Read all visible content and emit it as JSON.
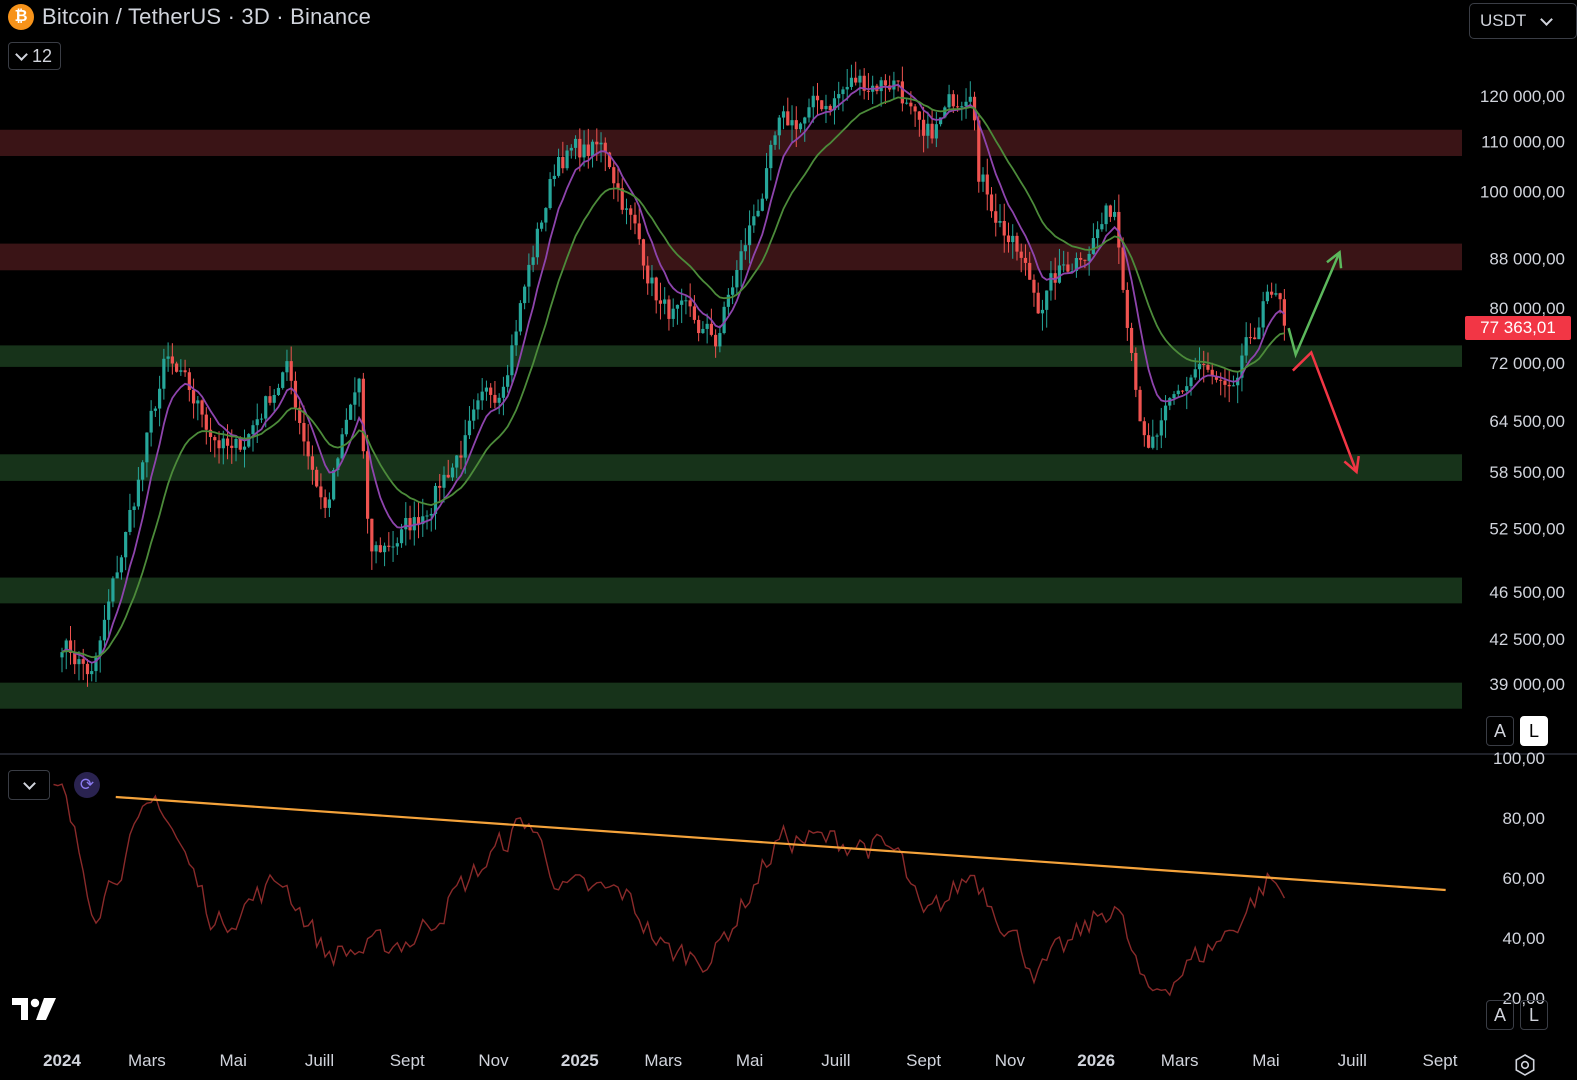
{
  "header": {
    "logo_letter": "₿",
    "title": "Bitcoin / TetherUS · 3D · Binance",
    "indicator_count": "12",
    "currency": "USDT",
    "current_price": "77 363,01"
  },
  "buttons": {
    "auto_label": "A",
    "log_label": "L",
    "auto_label_2": "A",
    "log_label_2": "L"
  },
  "icons": [
    "bitcoin-icon",
    "chevron-down-icon",
    "refresh-icon",
    "tradingview-logo-icon",
    "gear-icon"
  ],
  "colors": {
    "background": "#000000",
    "candle_up": "#26a69a",
    "candle_down": "#ef5350",
    "ema_fast": "#8e44ad",
    "ema_slow": "#4c8b3a",
    "resistance_zone": "#3a1416",
    "support_zone": "#17331a",
    "rsi_line": "#8a2a2a",
    "trendline": "#f5a33b",
    "arrow_up": "#5cb85c",
    "arrow_down": "#f23645"
  },
  "chart_data": [
    {
      "type": "candlestick",
      "scale": "log",
      "price_axis_labels": [
        "120 000,00",
        "110 000,00",
        "100 000,00",
        "88 000,00",
        "80 000,00",
        "72 000,00",
        "64 500,00",
        "58 500,00",
        "52 500,00",
        "46 500,00",
        "42 500,00",
        "39 000,00"
      ],
      "price_axis_values": [
        120000,
        110000,
        100000,
        88000,
        80000,
        72000,
        64500,
        58500,
        52500,
        46500,
        42500,
        39000
      ],
      "time_axis_labels": [
        {
          "label": "2024",
          "bold": true
        },
        {
          "label": "Mars"
        },
        {
          "label": "Mai"
        },
        {
          "label": "Juill"
        },
        {
          "label": "Sept"
        },
        {
          "label": "Nov"
        },
        {
          "label": "2025",
          "bold": true
        },
        {
          "label": "Mars"
        },
        {
          "label": "Mai"
        },
        {
          "label": "Juill"
        },
        {
          "label": "Sept"
        },
        {
          "label": "Nov"
        },
        {
          "label": "2026",
          "bold": true
        },
        {
          "label": "Mars"
        },
        {
          "label": "Mai"
        },
        {
          "label": "Juill"
        },
        {
          "label": "Sept"
        }
      ],
      "zones": [
        {
          "kind": "resistance",
          "from": 107000,
          "to": 112500
        },
        {
          "kind": "resistance",
          "from": 86000,
          "to": 90500
        },
        {
          "kind": "support",
          "from": 71500,
          "to": 74500
        },
        {
          "kind": "support",
          "from": 57500,
          "to": 60500
        },
        {
          "kind": "support",
          "from": 45500,
          "to": 47800
        },
        {
          "kind": "support",
          "from": 37200,
          "to": 39100
        }
      ],
      "key_points": [
        {
          "date": "2024-01-01",
          "price": 42500
        },
        {
          "date": "2024-01-23",
          "price": 39500
        },
        {
          "date": "2024-03-14",
          "price": 72000
        },
        {
          "date": "2024-05-01",
          "price": 60000
        },
        {
          "date": "2024-06-07",
          "price": 71500
        },
        {
          "date": "2024-07-05",
          "price": 54500
        },
        {
          "date": "2024-07-29",
          "price": 69500
        },
        {
          "date": "2024-08-05",
          "price": 49500
        },
        {
          "date": "2024-09-06",
          "price": 53000
        },
        {
          "date": "2024-11-05",
          "price": 69000
        },
        {
          "date": "2024-12-17",
          "price": 107500
        },
        {
          "date": "2025-01-20",
          "price": 108000
        },
        {
          "date": "2025-02-28",
          "price": 80000
        },
        {
          "date": "2025-04-07",
          "price": 75000
        },
        {
          "date": "2025-05-22",
          "price": 111500
        },
        {
          "date": "2025-07-14",
          "price": 123000
        },
        {
          "date": "2025-08-14",
          "price": 124000
        },
        {
          "date": "2025-09-01",
          "price": 108000
        },
        {
          "date": "2025-10-06",
          "price": 126000
        },
        {
          "date": "2025-10-10",
          "price": 104000
        },
        {
          "date": "2025-11-21",
          "price": 81000
        },
        {
          "date": "2026-01-14",
          "price": 97000
        },
        {
          "date": "2026-02-06",
          "price": 60000
        },
        {
          "date": "2026-03-14",
          "price": 72000
        },
        {
          "date": "2026-04-05",
          "price": 66000
        },
        {
          "date": "2026-05-01",
          "price": 81500
        },
        {
          "date": "2026-05-16",
          "price": 77363
        }
      ],
      "projection": {
        "bullish": [
          {
            "date": "2026-05-20",
            "price": 76000
          },
          {
            "date": "2026-06-22",
            "price": 89000
          }
        ],
        "bearish": [
          {
            "date": "2026-05-20",
            "price": 71000
          },
          {
            "date": "2026-06-02",
            "price": 73500
          },
          {
            "date": "2026-07-04",
            "price": 58500
          }
        ]
      }
    },
    {
      "type": "line",
      "name": "RSI",
      "y_axis_labels": [
        "100,00",
        "80,00",
        "60,00",
        "40,00",
        "20,00"
      ],
      "y_axis_values": [
        100,
        80,
        60,
        40,
        20
      ],
      "ylim": [
        20,
        100
      ],
      "trendline": [
        {
          "date": "2024-02-08",
          "value": 87
        },
        {
          "date": "2026-09-05",
          "value": 56
        }
      ],
      "key_points": [
        {
          "date": "2024-01-01",
          "value": 88
        },
        {
          "date": "2024-01-24",
          "value": 50
        },
        {
          "date": "2024-03-09",
          "value": 87
        },
        {
          "date": "2024-04-19",
          "value": 44
        },
        {
          "date": "2024-06-05",
          "value": 60
        },
        {
          "date": "2024-07-05",
          "value": 35
        },
        {
          "date": "2024-08-05",
          "value": 36
        },
        {
          "date": "2024-09-06",
          "value": 40
        },
        {
          "date": "2024-11-25",
          "value": 80
        },
        {
          "date": "2024-12-20",
          "value": 56
        },
        {
          "date": "2025-02-01",
          "value": 55
        },
        {
          "date": "2025-03-03",
          "value": 35
        },
        {
          "date": "2025-04-06",
          "value": 34
        },
        {
          "date": "2025-05-22",
          "value": 73
        },
        {
          "date": "2025-07-14",
          "value": 72
        },
        {
          "date": "2025-08-14",
          "value": 68
        },
        {
          "date": "2025-09-01",
          "value": 45
        },
        {
          "date": "2025-10-06",
          "value": 62
        },
        {
          "date": "2025-11-21",
          "value": 28
        },
        {
          "date": "2026-01-14",
          "value": 52
        },
        {
          "date": "2026-02-06",
          "value": 20
        },
        {
          "date": "2026-04-05",
          "value": 42
        },
        {
          "date": "2026-05-04",
          "value": 60
        },
        {
          "date": "2026-05-16",
          "value": 52
        }
      ]
    }
  ]
}
